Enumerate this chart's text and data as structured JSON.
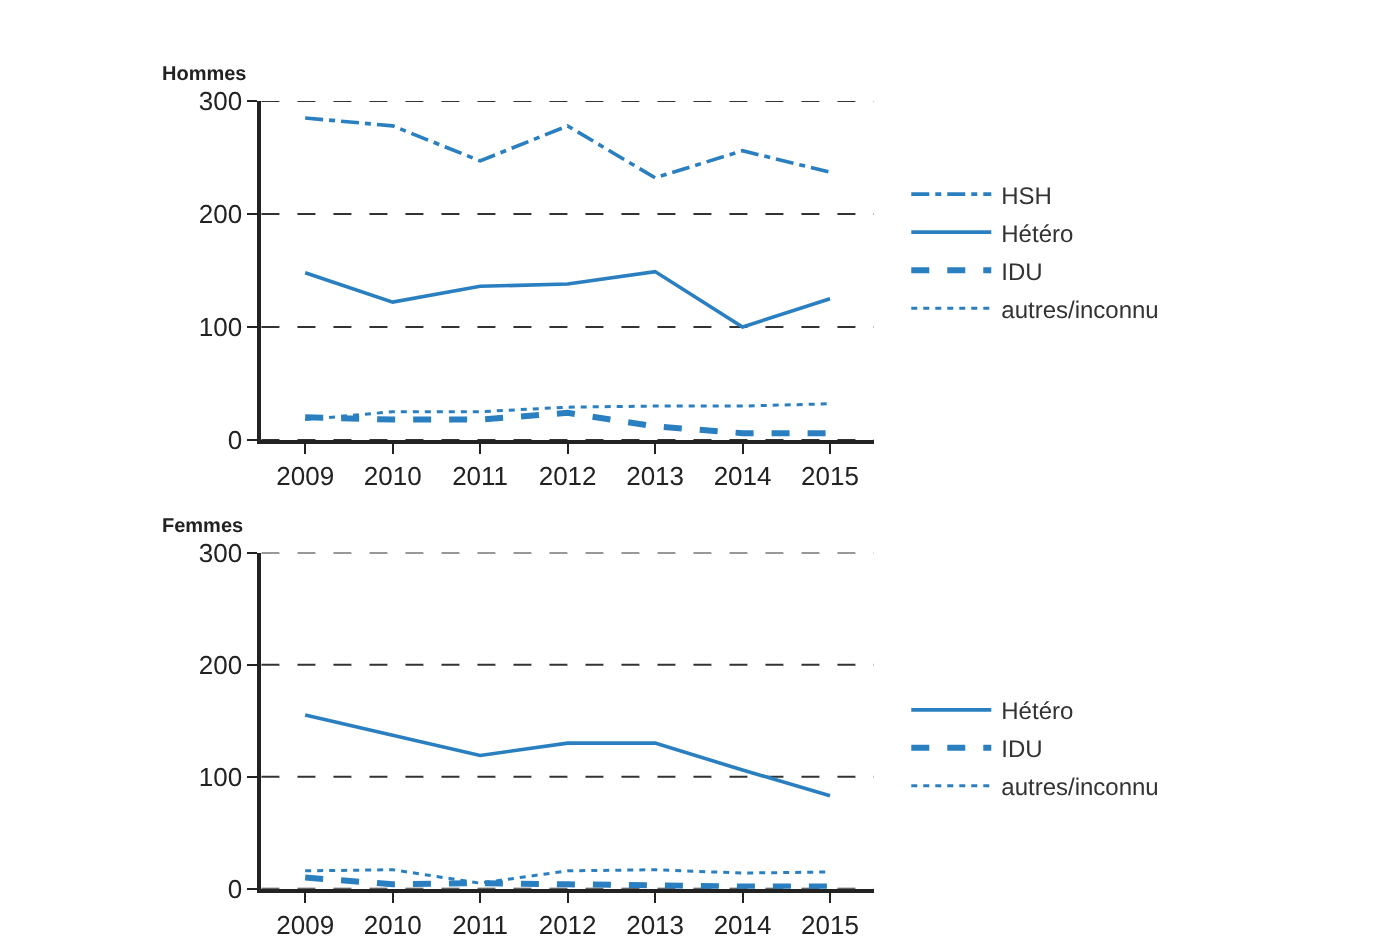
{
  "chart_data": [
    {
      "type": "line",
      "title": "Hommes",
      "categories": [
        "2009",
        "2010",
        "2011",
        "2012",
        "2013",
        "2014",
        "2015"
      ],
      "ylim": [
        0,
        300
      ],
      "yticks": [
        0,
        100,
        200,
        300
      ],
      "grid": "y",
      "legend": "right",
      "marker": "none",
      "series": [
        {
          "name": "HSH",
          "color": "#2a7fc1",
          "line_style": "dashdot",
          "values": [
            285,
            278,
            247,
            278,
            232,
            256,
            237
          ]
        },
        {
          "name": "Hétéro",
          "color": "#2a7fc1",
          "line_style": "solid",
          "values": [
            148,
            122,
            136,
            138,
            149,
            100,
            125
          ]
        },
        {
          "name": "IDU",
          "color": "#2a7fc1",
          "line_style": "dashed",
          "values": [
            20,
            18,
            18,
            24,
            12,
            6,
            6
          ]
        },
        {
          "name": "autres/inconnu",
          "color": "#2a7fc1",
          "line_style": "dotted",
          "values": [
            18,
            25,
            25,
            29,
            30,
            30,
            32
          ]
        }
      ]
    },
    {
      "type": "line",
      "title": "Femmes",
      "categories": [
        "2009",
        "2010",
        "2011",
        "2012",
        "2013",
        "2014",
        "2015"
      ],
      "ylim": [
        0,
        300
      ],
      "yticks": [
        0,
        100,
        200,
        300
      ],
      "grid": "y",
      "legend": "right",
      "marker": "none",
      "series": [
        {
          "name": "Hétéro",
          "color": "#2a7fc1",
          "line_style": "solid",
          "values": [
            155,
            137,
            119,
            130,
            130,
            106,
            83
          ]
        },
        {
          "name": "IDU",
          "color": "#2a7fc1",
          "line_style": "dashed",
          "values": [
            10,
            4,
            5,
            4,
            3,
            2,
            2
          ]
        },
        {
          "name": "autres/inconnu",
          "color": "#2a7fc1",
          "line_style": "dotted",
          "values": [
            16,
            17,
            5,
            16,
            17,
            14,
            15
          ]
        }
      ]
    }
  ]
}
